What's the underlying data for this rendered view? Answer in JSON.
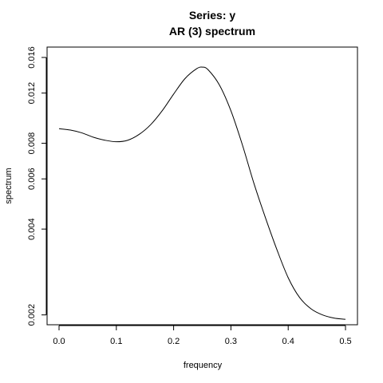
{
  "chart_data": {
    "type": "line",
    "title": "Series: y",
    "subtitle": "AR (3) spectrum",
    "xlabel": "frequency",
    "ylabel": "spectrum",
    "y_scale": "log",
    "xlim": [
      0,
      0.5
    ],
    "ylim": [
      0.00192,
      0.016
    ],
    "x_ticks": [
      0.0,
      0.1,
      0.2,
      0.3,
      0.4,
      0.5
    ],
    "x_tick_labels": [
      "0.0",
      "0.1",
      "0.2",
      "0.3",
      "0.4",
      "0.5"
    ],
    "y_ticks": [
      0.002,
      0.004,
      0.006,
      0.008,
      0.012,
      0.016
    ],
    "y_tick_labels": [
      "0.002",
      "0.004",
      "0.006",
      "0.008",
      "0.012",
      "0.016"
    ],
    "grid": false,
    "series": [
      {
        "x": [
          0.0,
          0.02,
          0.04,
          0.06,
          0.08,
          0.1,
          0.12,
          0.14,
          0.16,
          0.18,
          0.2,
          0.22,
          0.24,
          0.25,
          0.26,
          0.28,
          0.3,
          0.32,
          0.34,
          0.36,
          0.38,
          0.4,
          0.42,
          0.44,
          0.46,
          0.48,
          0.5
        ],
        "y": [
          0.009,
          0.0089,
          0.0087,
          0.0084,
          0.0082,
          0.0081,
          0.0082,
          0.0086,
          0.0093,
          0.0104,
          0.0119,
          0.0135,
          0.0146,
          0.0148,
          0.0145,
          0.0128,
          0.0104,
          0.0079,
          0.0058,
          0.0044,
          0.0034,
          0.0027,
          0.0023,
          0.0021,
          0.002,
          0.00195,
          0.00193
        ],
        "color": "#000000"
      }
    ]
  }
}
